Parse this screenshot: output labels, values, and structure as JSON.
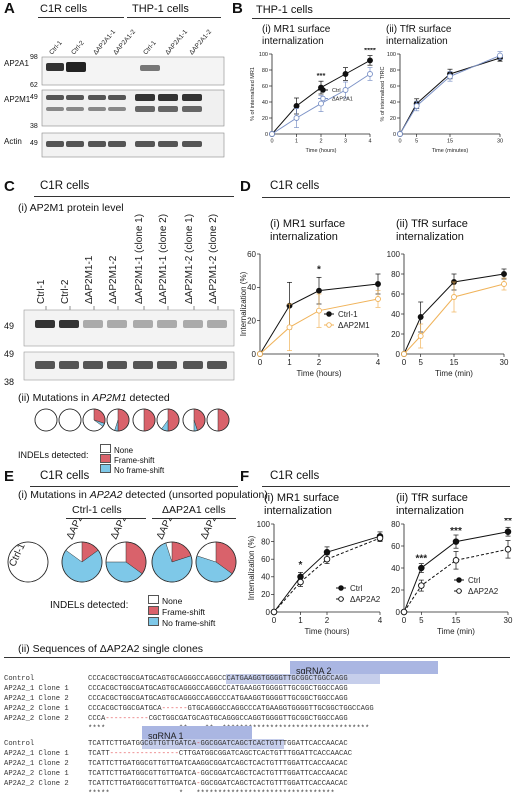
{
  "panels": {
    "A": {
      "label": "A",
      "groups": [
        "C1R cells",
        "THP-1 cells"
      ],
      "lanes": [
        "Ctrl-1",
        "Ctrl-2",
        "ΔAP2A1-1",
        "ΔAP2A1-2",
        "Ctrl-1",
        "ΔAP2A1-1",
        "ΔAP2A1-2"
      ],
      "blots": [
        "AP2A1",
        "AP2M1",
        "Actin"
      ],
      "markers": [
        "98",
        "62",
        "49",
        "38",
        "49"
      ]
    },
    "B": {
      "label": "B",
      "title": "THP-1 cells",
      "sub1": "(i) MR1 surface",
      "sub1b": "internalization",
      "sub2": "(ii) TfR surface",
      "sub2b": "internalization",
      "legend": [
        "Ctrl",
        "ΔAP2A1"
      ]
    },
    "C": {
      "label": "C",
      "title": "C1R cells",
      "sub1": "(i) AP2M1 protein level",
      "lanes": [
        "Ctrl-1",
        "Ctrl-2",
        "ΔAP2M1-1",
        "ΔAP2M1-2",
        "ΔAP2M1-1 (clone 1)",
        "ΔAP2M1-1 (clone 2)",
        "ΔAP2M1-2 (clone 1)",
        "ΔAP2M1-2 (clone 2)"
      ],
      "markers": [
        "49",
        "49",
        "38"
      ],
      "sub2": "(ii) Mutations in",
      "sub2gene": "AP2M1",
      "sub2end": "detected",
      "indel_title": "INDELs detected:",
      "indel_items": [
        "None",
        "Frame-shift",
        "No frame-shift"
      ]
    },
    "D": {
      "label": "D",
      "title": "C1R cells",
      "sub1": "(i) MR1 surface",
      "sub1b": "internalization",
      "sub2": "(ii) TfR surface",
      "sub2b": "internalization",
      "legend": [
        "Ctrl-1",
        "ΔAP2M1"
      ]
    },
    "E": {
      "label": "E",
      "title": "C1R cells",
      "sub1": "(i) Mutations in",
      "sub1gene": "AP2A2",
      "sub1end": "detected (unsorted population)",
      "groups": [
        "Ctrl-1 cells",
        "ΔAP2A1 cells"
      ],
      "pies": [
        "Ctrl-1",
        "ΔAP2A2_1",
        "ΔAP2A2_2",
        "ΔAP2A2_1",
        "ΔAP2A2_2"
      ],
      "indel_title": "INDELs detected:",
      "indel_items": [
        "None",
        "Frame-shift",
        "No frame-shift"
      ],
      "sub2": "(ii) Sequences of ΔAP2A2 single clones",
      "sgrna2": "sgRNA 2",
      "sgrna1": "sgRNA 1",
      "seq1": [
        {
          "name": "Control",
          "seq": "CCCACGCTGGCGATGCAGTGCAGGGCCAGGCCCATGAAGGTGGGGTTGCGGCTGGCCAGG"
        },
        {
          "name": "AP2A2_1 Clone 1",
          "seq": "CCCACGCTGGCGATGCAGTGCAGGGCCAGGCCCATGAAGGTGGGGTTGCGGCTGGCCAGG"
        },
        {
          "name": "AP2A2_1 Clone 2",
          "seq": "CCCACGCTGGCGATGCAGTGCAGGGCCAGGCCCATGAAGGTGGGGTTGCGGCTGGCCAGG"
        },
        {
          "name": "AP2A2_2 Clone 1",
          "seq": "CCCACGCTGGCGATGCA------GTGCAGGGCCAGGCCCATGAAGGTGGGGTTGCGGCTGGCCAGG"
        },
        {
          "name": "AP2A2_2 Clone 2",
          "seq": "CCCA----------CGCTGGCGATGCAGTGCAGGGCCAGGTGGGGTTGCGGCTGGCCAGG"
        },
        {
          "name": "",
          "seq": "****                 **    **  **********************************"
        }
      ],
      "seq2": [
        {
          "name": "Control",
          "seq": "TCATTCTTGATGGCGTTGTTGATCA-GGCGGATCAGCTCACTGTTTGGATTCACCAACAC"
        },
        {
          "name": "AP2A2_1 Clone 1",
          "seq": "TCATT----------------CTTGATGGCGGATCAGCTCACTGTTTGGATTCACCAACAC"
        },
        {
          "name": "AP2A2_1 Clone 2",
          "seq": "TCATTCTTGATGGCGTTGTTGATCAAGGCGGATCAGCTCACTGTTTGGATTCACCAACAC"
        },
        {
          "name": "AP2A2_2 Clone 1",
          "seq": "TCATTCTTGATGGCGTTGTTGATCA-GGCGGATCAGCTCACTGTTTGGATTCACCAACAC"
        },
        {
          "name": "AP2A2_2 Clone 2",
          "seq": "TCATTCTTGATGGCGTTGTTGATCA-GGCGGATCAGCTCACTGTTTGGATTCACCAACAC"
        },
        {
          "name": "",
          "seq": "*****                *   ********************************"
        }
      ]
    },
    "F": {
      "label": "F",
      "title": "C1R cells",
      "sub1": "(i) MR1 surface",
      "sub1b": "internalization",
      "sub2": "(ii) TfR surface",
      "sub2b": "internalization",
      "legend": [
        "Ctrl",
        "ΔAP2A2"
      ]
    }
  },
  "colors": {
    "frameshift": "#d9626b",
    "noframeshift": "#7ec8e8",
    "orange": "#f0b35a",
    "blue": "#7d93c7",
    "sg": "#aab6e2"
  },
  "chart_data": [
    {
      "id": "B-i",
      "type": "line",
      "ylabel": "% of internalized MR1",
      "xlabel": "Time (hours)",
      "x": [
        0,
        1,
        2,
        3,
        4
      ],
      "xlim": [
        0,
        4
      ],
      "ylim": [
        0,
        100
      ],
      "yticks": [
        0,
        20,
        40,
        60,
        80,
        100
      ],
      "series": [
        {
          "name": "Ctrl",
          "values": [
            0,
            35,
            58,
            75,
            92
          ]
        },
        {
          "name": "ΔAP2A1",
          "values": [
            0,
            20,
            38,
            55,
            75
          ]
        }
      ],
      "annotations": [
        "***",
        "****"
      ]
    },
    {
      "id": "B-ii",
      "type": "line",
      "ylabel": "% of internalized TfRC",
      "xlabel": "Time (minutes)",
      "x": [
        0,
        5,
        15,
        30
      ],
      "xlim": [
        0,
        30
      ],
      "ylim": [
        0,
        100
      ],
      "yticks": [
        0,
        20,
        40,
        60,
        80,
        100
      ],
      "series": [
        {
          "name": "Ctrl",
          "values": [
            0,
            38,
            75,
            95
          ]
        },
        {
          "name": "ΔAP2A1",
          "values": [
            0,
            35,
            72,
            98
          ]
        }
      ]
    },
    {
      "id": "D-i",
      "type": "line",
      "ylabel": "Internalization (%)",
      "xlabel": "Time (hours)",
      "x": [
        0,
        1,
        2,
        4
      ],
      "xlim": [
        0,
        4
      ],
      "ylim": [
        0,
        60
      ],
      "yticks": [
        0,
        20,
        40,
        60
      ],
      "series": [
        {
          "name": "Ctrl-1",
          "values": [
            0,
            29,
            38,
            42
          ]
        },
        {
          "name": "ΔAP2M1",
          "values": [
            0,
            16,
            26,
            33
          ]
        }
      ],
      "annotations": [
        "*"
      ]
    },
    {
      "id": "D-ii",
      "type": "line",
      "ylabel": "",
      "xlabel": "Time (min)",
      "x": [
        0,
        5,
        15,
        30
      ],
      "xlim": [
        0,
        30
      ],
      "ylim": [
        0,
        100
      ],
      "yticks": [
        0,
        20,
        40,
        60,
        80,
        100
      ],
      "series": [
        {
          "name": "Ctrl-1",
          "values": [
            0,
            37,
            72,
            80
          ]
        },
        {
          "name": "ΔAP2M1",
          "values": [
            0,
            18,
            57,
            70
          ]
        }
      ]
    },
    {
      "id": "F-i",
      "type": "line",
      "ylabel": "Internalization (%)",
      "xlabel": "Time (hours)",
      "x": [
        0,
        1,
        2,
        4
      ],
      "xlim": [
        0,
        4
      ],
      "ylim": [
        0,
        100
      ],
      "yticks": [
        0,
        20,
        40,
        60,
        80,
        100
      ],
      "series": [
        {
          "name": "Ctrl",
          "values": [
            0,
            40,
            68,
            86
          ]
        },
        {
          "name": "ΔAP2A2",
          "values": [
            0,
            34,
            60,
            84
          ]
        }
      ],
      "annotations": [
        "*"
      ]
    },
    {
      "id": "F-ii",
      "type": "line",
      "ylabel": "",
      "xlabel": "Time (min)",
      "x": [
        0,
        5,
        15,
        30
      ],
      "xlim": [
        0,
        30
      ],
      "ylim": [
        0,
        80
      ],
      "yticks": [
        0,
        20,
        40,
        60,
        80
      ],
      "series": [
        {
          "name": "Ctrl",
          "values": [
            0,
            40,
            64,
            73
          ]
        },
        {
          "name": "ΔAP2A2",
          "values": [
            0,
            24,
            47,
            57
          ]
        }
      ],
      "annotations": [
        "***",
        "***",
        "**"
      ]
    }
  ]
}
